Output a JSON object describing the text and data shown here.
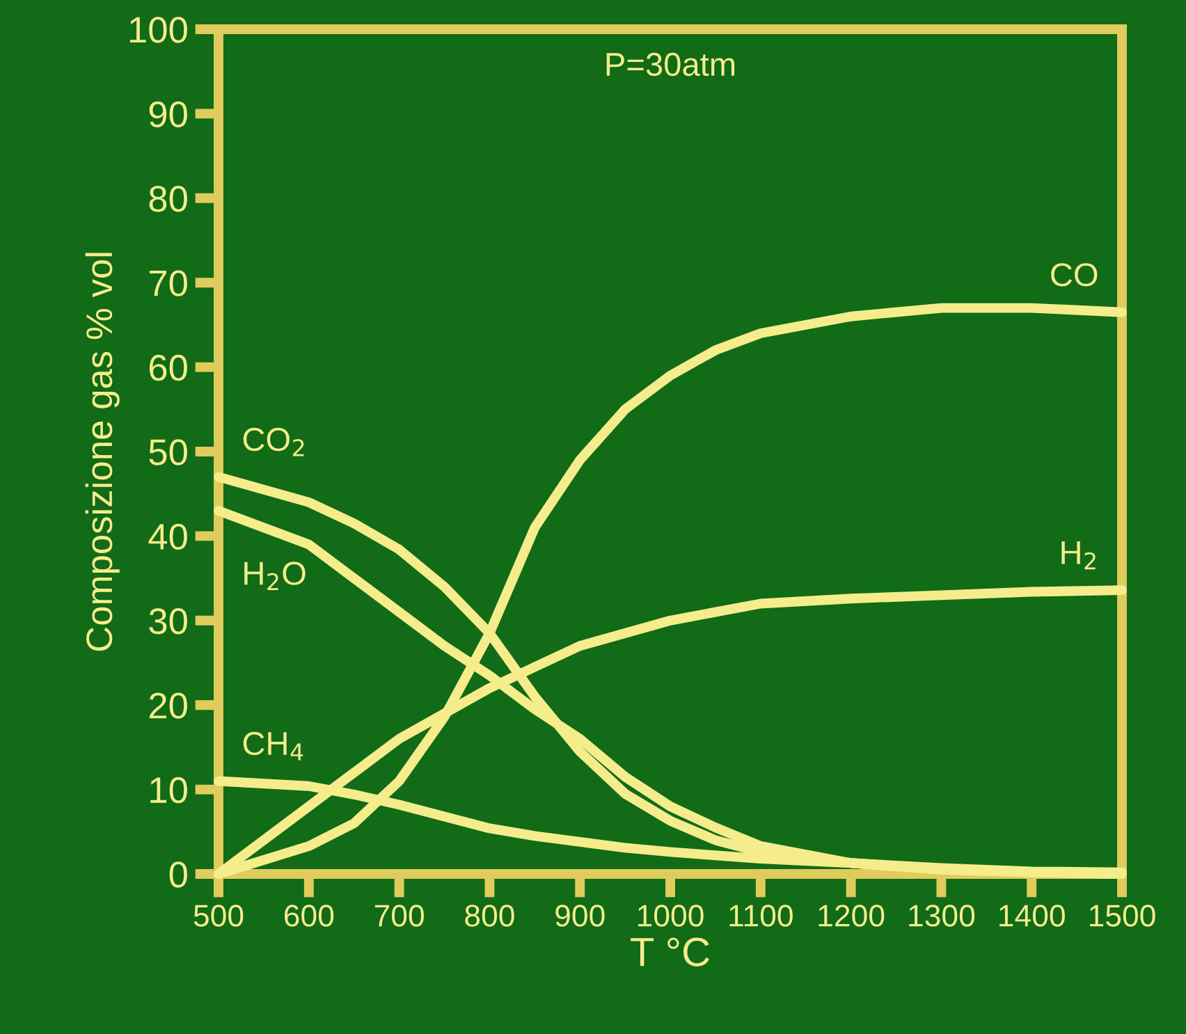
{
  "chart_data": {
    "type": "line",
    "xlabel": "T °C",
    "ylabel": "Composizione gas % vol",
    "annotations": [
      "P=30atm"
    ],
    "x": [
      500,
      600,
      650,
      700,
      750,
      800,
      850,
      900,
      950,
      1000,
      1050,
      1100,
      1200,
      1300,
      1400,
      1500
    ],
    "series": [
      {
        "name": "CO",
        "color": "#f5ec8c",
        "values": [
          0,
          3.3,
          6,
          11,
          18.6,
          28.5,
          41,
          49,
          55,
          59,
          62,
          64,
          66,
          67,
          67,
          66.5
        ]
      },
      {
        "name": "H$_{2}$",
        "color": "#f5ec8c",
        "values": [
          0,
          8,
          12,
          16,
          19,
          22,
          24.5,
          27,
          28.5,
          30,
          31,
          32,
          32.6,
          33,
          33.4,
          33.6
        ]
      },
      {
        "name": "CO$_{2}$",
        "color": "#f5ec8c",
        "values": [
          47,
          44,
          41.5,
          38.4,
          34,
          28.5,
          21,
          14.5,
          9.5,
          6.3,
          4,
          2.6,
          1.3,
          0.5,
          0.2,
          0
        ]
      },
      {
        "name": "H$_{2}$O",
        "color": "#f5ec8c",
        "values": [
          43,
          39,
          35,
          31,
          27,
          23.5,
          19.5,
          16,
          11.5,
          8,
          5.5,
          3.3,
          1.3,
          0.5,
          0.2,
          0
        ]
      },
      {
        "name": "CH$_{4}$",
        "color": "#f5ec8c",
        "values": [
          11,
          10.4,
          9.4,
          8.2,
          6.8,
          5.4,
          4.5,
          3.8,
          3.1,
          2.6,
          2.2,
          1.8,
          1.3,
          0.7,
          0.3,
          0.2
        ]
      }
    ],
    "xlim": [
      500,
      1500
    ],
    "ylim": [
      0,
      100
    ],
    "xticks": [
      500,
      600,
      700,
      800,
      900,
      1000,
      1100,
      1200,
      1300,
      1400,
      1500
    ],
    "yticks": [
      0,
      10,
      20,
      30,
      40,
      50,
      60,
      70,
      80,
      90,
      100
    ],
    "grid": false,
    "legend": false,
    "marker": "none",
    "line_style": "solid"
  }
}
